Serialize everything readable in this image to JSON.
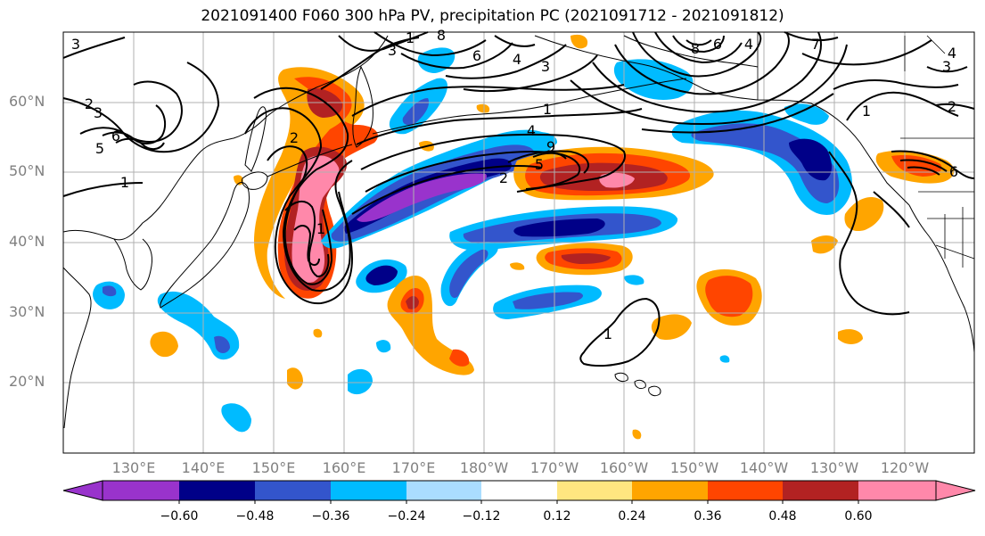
{
  "title": "2021091400 F060 300 hPa PV, precipitation PC (2021091712 - 2021091812)",
  "lat_labels": [
    "60°N",
    "50°N",
    "40°N",
    "30°N",
    "20°N"
  ],
  "lon_labels": [
    "130°E",
    "140°E",
    "150°E",
    "160°E",
    "170°E",
    "180°W",
    "170°W",
    "160°W",
    "150°W",
    "140°W",
    "130°W",
    "120°W"
  ],
  "colorbar": {
    "labels": [
      "−0.60",
      "−0.48",
      "−0.36",
      "−0.24",
      "−0.12",
      "0.12",
      "0.24",
      "0.36",
      "0.48",
      "0.60"
    ],
    "colors": [
      "#9933cc",
      "#000088",
      "#3355cc",
      "#00bbff",
      "#aaddff",
      "#ffffff",
      "#ffe680",
      "#ffa500",
      "#ff4500",
      "#b22222",
      "#ff88aa"
    ]
  },
  "contour_labels": [
    "3",
    "2",
    "3",
    "6",
    "5",
    "1",
    "2",
    "1",
    "8",
    "6",
    "4",
    "3",
    "1",
    "4",
    "9",
    "2",
    "5",
    "8",
    "6",
    "4",
    "7",
    "3",
    "1",
    "4",
    "3",
    "2",
    "6",
    "1",
    "1"
  ],
  "colors": {
    "grid": "#b0b0b0",
    "tick_text": "#808080",
    "contour": "#000000"
  }
}
